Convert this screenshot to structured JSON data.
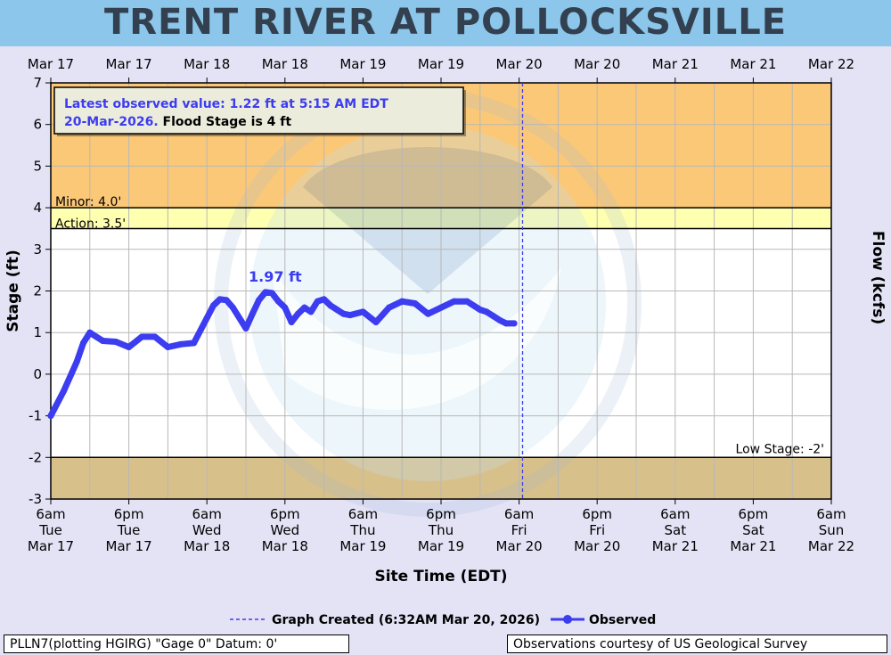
{
  "title": "TRENT RIVER AT POLLOCKSVILLE",
  "info_box": {
    "line1": "Latest observed value: 1.22 ft at 5:15 AM EDT",
    "line2_blue": "20-Mar-2026.",
    "line2_black": " Flood Stage is 4 ft"
  },
  "footer": {
    "left": "PLLN7(plotting HGIRG) \"Gage 0\" Datum: 0'",
    "right": "Observations courtesy of US Geological Survey"
  },
  "colors": {
    "observed": "#3c3cf0",
    "minor_band": "#fbc878",
    "action_band": "#ffffb0",
    "low_band": "#d8c08a",
    "normal_band": "#ffffff",
    "title_bg": "#8cc6ea",
    "created_line": "#3c3cf0"
  },
  "chart_data": {
    "type": "line",
    "title": "TRENT RIVER AT POLLOCKSVILLE",
    "xlabel": "Site Time (EDT)",
    "ylabel": "Stage (ft)",
    "y2label": "Flow (kcfs)",
    "ylim": [
      -3,
      7
    ],
    "yticks": [
      -3,
      -2,
      -1,
      0,
      1,
      2,
      3,
      4,
      5,
      6,
      7
    ],
    "xlim": [
      "2026-03-17 06:00",
      "2026-03-22 06:00"
    ],
    "grid": true,
    "bottom_ticks": [
      [
        "6am",
        "Tue",
        "Mar 17"
      ],
      [
        "6pm",
        "Tue",
        "Mar 17"
      ],
      [
        "6am",
        "Wed",
        "Mar 18"
      ],
      [
        "6pm",
        "Wed",
        "Mar 18"
      ],
      [
        "6am",
        "Thu",
        "Mar 19"
      ],
      [
        "6pm",
        "Thu",
        "Mar 19"
      ],
      [
        "6am",
        "Fri",
        "Mar 20"
      ],
      [
        "6pm",
        "Fri",
        "Mar 20"
      ],
      [
        "6am",
        "Sat",
        "Mar 21"
      ],
      [
        "6pm",
        "Sat",
        "Mar 21"
      ],
      [
        "6am",
        "Sun",
        "Mar 22"
      ]
    ],
    "top_ticks": [
      "Mar 17",
      "Mar 17",
      "Mar 18",
      "Mar 18",
      "Mar 19",
      "Mar 19",
      "Mar 20",
      "Mar 20",
      "Mar 21",
      "Mar 21",
      "Mar 22"
    ],
    "thresholds": {
      "minor": {
        "value": 4.0,
        "label": "Minor: 4.0'"
      },
      "action": {
        "value": 3.5,
        "label": "Action: 3.5'"
      },
      "low": {
        "value": -2,
        "label": "Low Stage: -2'"
      }
    },
    "peak_annotation": {
      "x": "2026-03-18 16:30",
      "y": 1.97,
      "label": "1.97 ft"
    },
    "graph_created": {
      "x": "2026-03-20 06:32",
      "label": "Graph Created (6:32AM Mar 20, 2026)"
    },
    "series": [
      {
        "name": "Observed",
        "x": [
          "2026-03-17 06:00",
          "2026-03-17 08:00",
          "2026-03-17 10:00",
          "2026-03-17 11:00",
          "2026-03-17 12:00",
          "2026-03-17 13:00",
          "2026-03-17 14:00",
          "2026-03-17 16:00",
          "2026-03-17 18:00",
          "2026-03-17 20:00",
          "2026-03-17 22:00",
          "2026-03-18 00:00",
          "2026-03-18 02:00",
          "2026-03-18 04:00",
          "2026-03-18 06:00",
          "2026-03-18 07:00",
          "2026-03-18 08:00",
          "2026-03-18 09:00",
          "2026-03-18 10:00",
          "2026-03-18 12:00",
          "2026-03-18 13:00",
          "2026-03-18 14:00",
          "2026-03-18 15:00",
          "2026-03-18 16:00",
          "2026-03-18 17:00",
          "2026-03-18 18:00",
          "2026-03-18 19:00",
          "2026-03-18 20:00",
          "2026-03-18 21:00",
          "2026-03-18 22:00",
          "2026-03-18 23:00",
          "2026-03-19 00:00",
          "2026-03-19 01:00",
          "2026-03-19 02:00",
          "2026-03-19 03:00",
          "2026-03-19 04:00",
          "2026-03-19 06:00",
          "2026-03-19 08:00",
          "2026-03-19 10:00",
          "2026-03-19 12:00",
          "2026-03-19 14:00",
          "2026-03-19 16:00",
          "2026-03-19 18:00",
          "2026-03-19 20:00",
          "2026-03-19 22:00",
          "2026-03-20 00:00",
          "2026-03-20 01:00",
          "2026-03-20 02:00",
          "2026-03-20 03:00",
          "2026-03-20 04:00",
          "2026-03-20 05:15"
        ],
        "y": [
          -1.0,
          -0.4,
          0.3,
          0.75,
          1.0,
          0.9,
          0.8,
          0.78,
          0.65,
          0.9,
          0.9,
          0.65,
          0.72,
          0.75,
          1.35,
          1.65,
          1.8,
          1.78,
          1.6,
          1.1,
          1.45,
          1.78,
          1.97,
          1.95,
          1.75,
          1.6,
          1.25,
          1.45,
          1.6,
          1.5,
          1.75,
          1.8,
          1.65,
          1.55,
          1.45,
          1.42,
          1.5,
          1.25,
          1.6,
          1.75,
          1.7,
          1.45,
          1.6,
          1.75,
          1.75,
          1.55,
          1.5,
          1.4,
          1.3,
          1.22,
          1.22
        ]
      }
    ],
    "legend": [
      {
        "label": "Graph Created (6:32AM Mar 20, 2026)",
        "style": "dashed"
      },
      {
        "label": "Observed",
        "style": "line-marker"
      }
    ],
    "legend_position": "bottom-center"
  }
}
